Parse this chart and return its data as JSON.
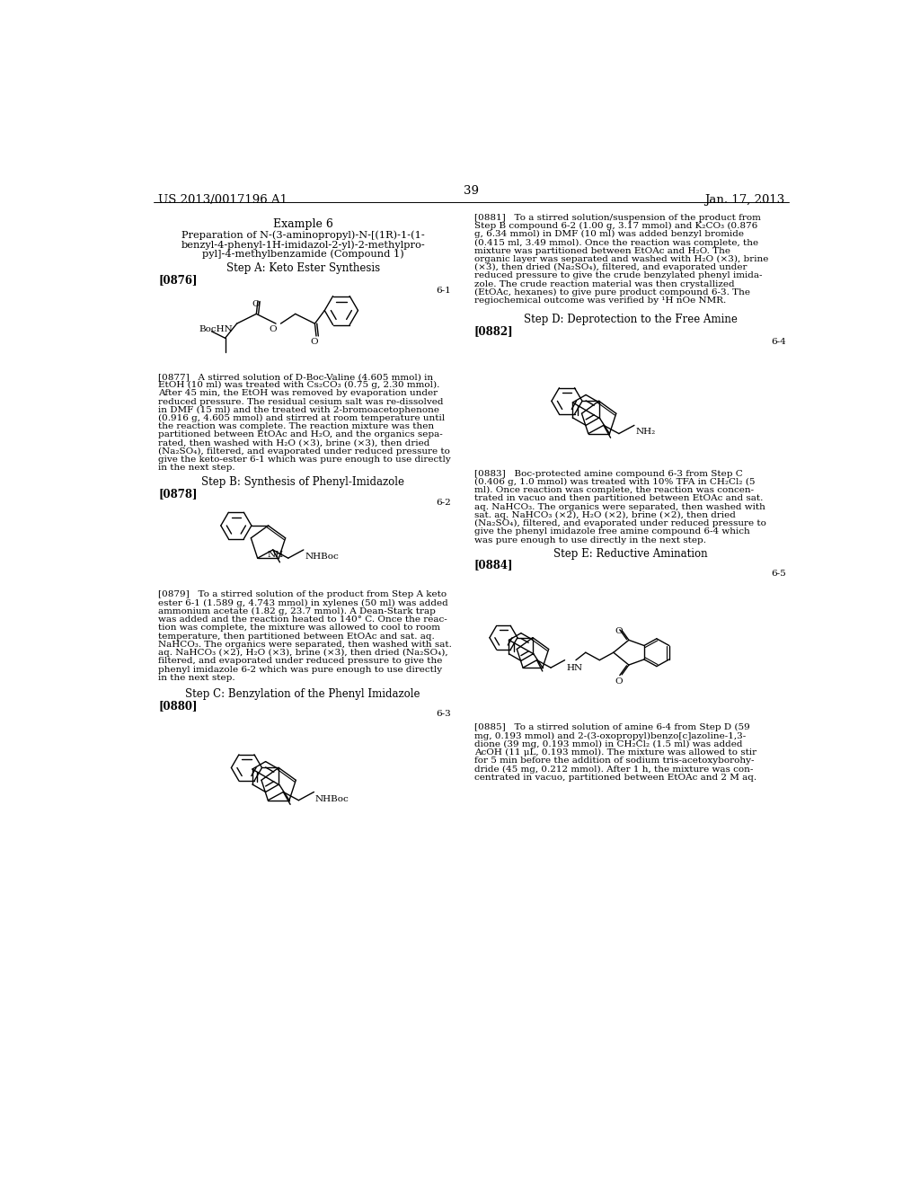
{
  "bg": "#ffffff",
  "header_left": "US 2013/0017196 A1",
  "header_right": "Jan. 17, 2013",
  "page_num": "39",
  "title": "Example 6",
  "subtitle": [
    "Preparation of N-(3-aminopropyl)-N-[(1R)-1-(1-",
    "benzyl-4-phenyl-1H-imidazol-2-yl)-2-methylpro-",
    "pyl]-4-methylbenzamide (Compound 1)"
  ],
  "step_a": "Step A: Keto Ester Synthesis",
  "step_b": "Step B: Synthesis of Phenyl-Imidazole",
  "step_c": "Step C: Benzylation of the Phenyl Imidazole",
  "step_d": "Step D: Deprotection to the Free Amine",
  "step_e": "Step E: Reductive Amination",
  "p0877": [
    "[0877]   A stirred solution of D-Boc-Valine (4.605 mmol) in",
    "EtOH (10 ml) was treated with Cs₂CO₃ (0.75 g, 2.30 mmol).",
    "After 45 min, the EtOH was removed by evaporation under",
    "reduced pressure. The residual cesium salt was re-dissolved",
    "in DMF (15 ml) and the treated with 2-bromoacetophenone",
    "(0.916 g, 4.605 mmol) and stirred at room temperature until",
    "the reaction was complete. The reaction mixture was then",
    "partitioned between EtOAc and H₂O, and the organics sepa-",
    "rated, then washed with H₂O (×3), brine (×3), then dried",
    "(Na₂SO₄), filtered, and evaporated under reduced pressure to",
    "give the keto-ester 6-1 which was pure enough to use directly",
    "in the next step."
  ],
  "p0879": [
    "[0879]   To a stirred solution of the product from Step A keto",
    "ester 6-1 (1.589 g, 4.743 mmol) in xylenes (50 ml) was added",
    "ammonium acetate (1.82 g, 23.7 mmol). A Dean-Stark trap",
    "was added and the reaction heated to 140° C. Once the reac-",
    "tion was complete, the mixture was allowed to cool to room",
    "temperature, then partitioned between EtOAc and sat. aq.",
    "NaHCO₃. The organics were separated, then washed with sat.",
    "aq. NaHCO₃ (×2), H₂O (×3), brine (×3), then dried (Na₂SO₄),",
    "filtered, and evaporated under reduced pressure to give the",
    "phenyl imidazole 6-2 which was pure enough to use directly",
    "in the next step."
  ],
  "p0881": [
    "[0881]   To a stirred solution/suspension of the product from",
    "Step B compound 6-2 (1.00 g, 3.17 mmol) and K₂CO₃ (0.876",
    "g, 6.34 mmol) in DMF (10 ml) was added benzyl bromide",
    "(0.415 ml, 3.49 mmol). Once the reaction was complete, the",
    "mixture was partitioned between EtOAc and H₂O. The",
    "organic layer was separated and washed with H₂O (×3), brine",
    "(×3), then dried (Na₂SO₄), filtered, and evaporated under",
    "reduced pressure to give the crude benzylated phenyl imida-",
    "zole. The crude reaction material was then crystallized",
    "(EtOAc, hexanes) to give pure product compound 6-3. The",
    "regiochemical outcome was verified by ¹H nOe NMR."
  ],
  "p0883": [
    "[0883]   Boc-protected amine compound 6-3 from Step C",
    "(0.406 g, 1.0 mmol) was treated with 10% TFA in CH₂Cl₂ (5",
    "ml). Once reaction was complete, the reaction was concen-",
    "trated in vacuo and then partitioned between EtOAc and sat.",
    "aq. NaHCO₃. The organics were separated, then washed with",
    "sat. aq. NaHCO₃ (×2), H₂O (×2), brine (×2), then dried",
    "(Na₂SO₄), filtered, and evaporated under reduced pressure to",
    "give the phenyl imidazole free amine compound 6-4 which",
    "was pure enough to use directly in the next step."
  ],
  "p0885": [
    "[0885]   To a stirred solution of amine 6-4 from Step D (59",
    "mg, 0.193 mmol) and 2-(3-oxopropyl)benzo[c]azoline-1,3-",
    "dione (39 mg, 0.193 mmol) in CH₂Cl₂ (1.5 ml) was added",
    "AcOH (11 μL, 0.193 mmol). The mixture was allowed to stir",
    "for 5 min before the addition of sodium tris-acetoxyborohy-",
    "dride (45 mg, 0.212 mmol). After 1 h, the mixture was con-",
    "centrated in vacuo, partitioned between EtOAc and 2 M aq."
  ]
}
